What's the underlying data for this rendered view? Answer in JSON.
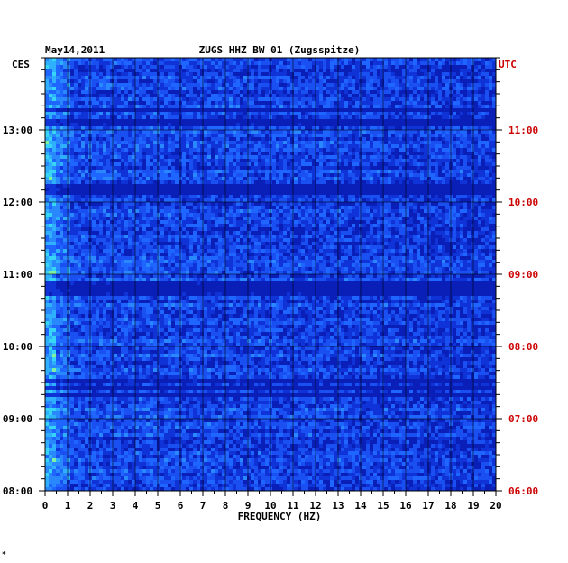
{
  "chart_data": {
    "type": "heatmap",
    "date": "May14,2011",
    "title": "ZUGS HHZ BW 01 (Zugsspitze)",
    "left_zone": "CES",
    "right_zone": "UTC",
    "xlabel": "FREQUENCY (HZ)",
    "xlim": [
      0,
      20
    ],
    "x_ticks": [
      "0",
      "1",
      "2",
      "3",
      "4",
      "5",
      "6",
      "7",
      "8",
      "9",
      "10",
      "11",
      "12",
      "13",
      "14",
      "15",
      "16",
      "17",
      "18",
      "19",
      "20"
    ],
    "left_time_ticks": [
      "13:00",
      "12:00",
      "11:00",
      "10:00",
      "09:00",
      "08:00"
    ],
    "right_time_ticks": [
      "11:00",
      "10:00",
      "09:00",
      "08:00",
      "07:00",
      "06:00"
    ],
    "time_range_ces": [
      "08:00",
      "13:50"
    ],
    "grid": true,
    "colors": {
      "low": "#0a1fb8",
      "mid": "#1e66ff",
      "high": "#2fd0ff",
      "peak": "#ffee30",
      "left_axis": "#000000",
      "right_axis": "#cc0000"
    },
    "footer_mark": "*"
  }
}
